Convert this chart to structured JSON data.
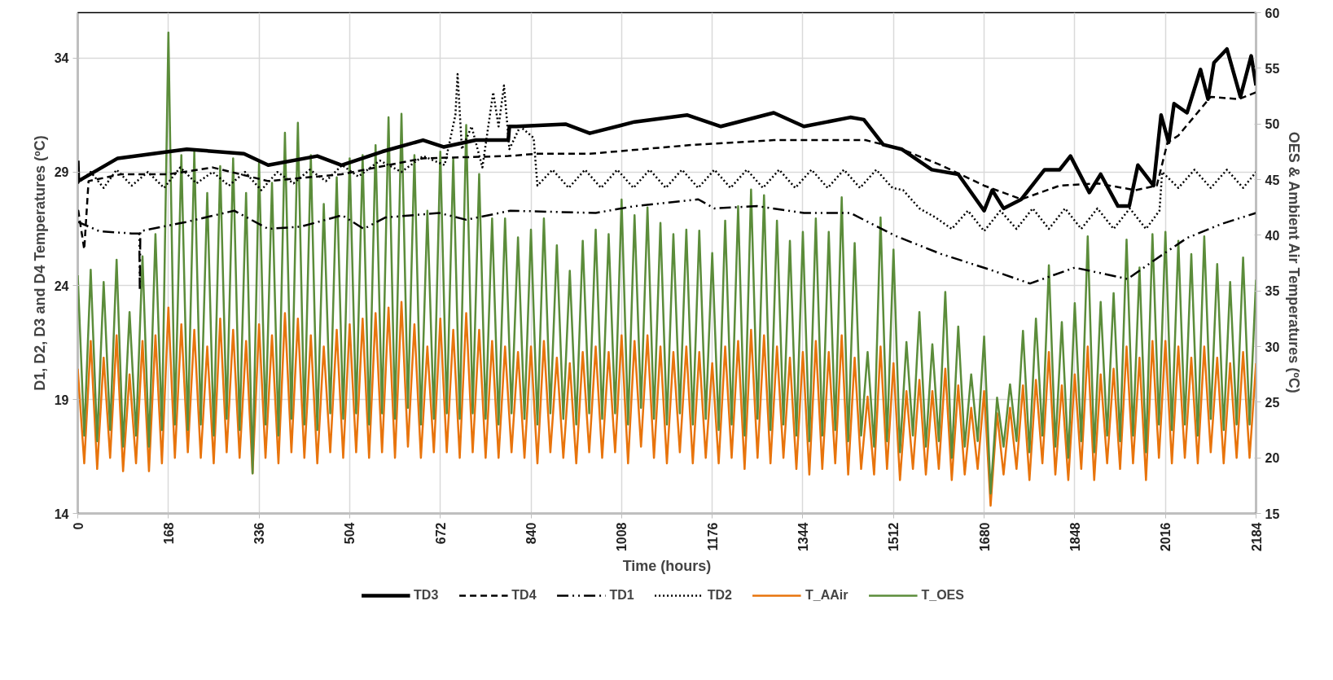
{
  "chart_data": {
    "type": "line",
    "xlabel": "Time (hours)",
    "ylabel": "D1, D2, D3 and D4 Temperatures (ºC)",
    "y2label": "OES & Ambient Air Temperatures (ºC)",
    "xlim": [
      0,
      2184
    ],
    "xticks": [
      0,
      168,
      336,
      504,
      672,
      840,
      1008,
      1176,
      1344,
      1512,
      1680,
      1848,
      2016,
      2184
    ],
    "ylim": [
      14,
      36
    ],
    "yticks": [
      14,
      19,
      24,
      29,
      34
    ],
    "y2lim": [
      15,
      60
    ],
    "y2ticks": [
      15,
      20,
      25,
      30,
      35,
      40,
      45,
      50,
      55,
      60
    ],
    "grid": true,
    "legend": "bottom",
    "series": [
      {
        "name": "TD3",
        "color": "#000000",
        "line_style": "solid",
        "x": [
          0,
          1,
          74,
          202,
          308,
          353,
          444,
          489,
          565,
          640,
          678,
          738,
          798,
          800,
          813,
          904,
          949,
          1032,
          1130,
          1192,
          1290,
          1346,
          1432,
          1457,
          1493,
          1527,
          1583,
          1632,
          1680,
          1695,
          1716,
          1749,
          1792,
          1820,
          1840,
          1875,
          1896,
          1928,
          1949,
          1965,
          1994,
          2008,
          2022,
          2032,
          2056,
          2081,
          2095,
          2106,
          2130,
          2155,
          2175,
          2184
        ],
        "values": [
          29.5,
          28.6,
          29.6,
          30.0,
          29.8,
          29.3,
          29.7,
          29.3,
          29.9,
          30.4,
          30.1,
          30.4,
          30.4,
          31.0,
          31.0,
          31.1,
          30.7,
          31.2,
          31.5,
          31.0,
          31.6,
          31.0,
          31.4,
          31.3,
          30.2,
          30.0,
          29.1,
          28.9,
          27.3,
          28.2,
          27.4,
          27.8,
          29.1,
          29.1,
          29.7,
          28.1,
          28.9,
          27.5,
          27.5,
          29.3,
          28.4,
          31.5,
          30.3,
          32.0,
          31.6,
          33.5,
          32.2,
          33.8,
          34.4,
          32.3,
          34.1,
          32.8
        ]
      },
      {
        "name": "TD4",
        "color": "#000000",
        "line_style": "dashed",
        "x": [
          0,
          1,
          12,
          20,
          80,
          168,
          250,
          353,
          489,
          640,
          798,
          850,
          949,
          1144,
          1290,
          1460,
          1527,
          1600,
          1680,
          1749,
          1820,
          1890,
          1960,
          2000,
          2020,
          2040,
          2100,
          2152,
          2184
        ],
        "values": [
          27.3,
          27.3,
          25.6,
          28.6,
          28.9,
          28.9,
          29.2,
          28.6,
          28.9,
          29.6,
          29.7,
          29.8,
          29.8,
          30.2,
          30.4,
          30.4,
          30.0,
          29.3,
          28.4,
          27.8,
          28.4,
          28.5,
          28.2,
          28.4,
          30.3,
          30.6,
          32.3,
          32.2,
          32.5
        ]
      },
      {
        "name": "TD1",
        "color": "#000000",
        "line_style": "dashdot",
        "x": [
          0,
          1,
          40,
          100,
          114,
          115,
          116,
          200,
          290,
          353,
          414,
          490,
          530,
          570,
          670,
          720,
          802,
          960,
          1032,
          1150,
          1180,
          1260,
          1346,
          1432,
          1515,
          1600,
          1692,
          1765,
          1848,
          1946,
          2000,
          2056,
          2118,
          2184
        ],
        "values": [
          26.8,
          26.8,
          26.4,
          26.3,
          26.3,
          23.8,
          26.4,
          26.8,
          27.3,
          26.5,
          26.6,
          27.1,
          26.5,
          27.0,
          27.2,
          26.9,
          27.3,
          27.2,
          27.5,
          27.8,
          27.4,
          27.5,
          27.2,
          27.2,
          26.2,
          25.4,
          24.7,
          24.1,
          24.8,
          24.3,
          25.2,
          26.1,
          26.7,
          27.2
        ]
      },
      {
        "name": "TD2",
        "color": "#000000",
        "line_style": "dotted",
        "x": [
          0,
          24,
          48,
          72,
          100,
          130,
          160,
          190,
          220,
          250,
          280,
          310,
          340,
          370,
          400,
          430,
          460,
          490,
          520,
          560,
          600,
          640,
          680,
          700,
          704,
          712,
          730,
          750,
          770,
          780,
          790,
          800,
          820,
          845,
          852,
          880,
          910,
          940,
          970,
          1000,
          1030,
          1060,
          1090,
          1120,
          1150,
          1180,
          1210,
          1240,
          1270,
          1300,
          1330,
          1360,
          1390,
          1420,
          1450,
          1480,
          1510,
          1530,
          1560,
          1590,
          1620,
          1650,
          1680,
          1710,
          1740,
          1770,
          1800,
          1830,
          1860,
          1890,
          1920,
          1950,
          1980,
          2005,
          2010,
          2040,
          2070,
          2100,
          2130,
          2160,
          2184
        ],
        "values": [
          28.5,
          29.0,
          28.3,
          29.1,
          28.4,
          29.0,
          28.3,
          29.2,
          28.5,
          29.0,
          28.4,
          29.0,
          28.2,
          29.0,
          28.5,
          29.1,
          28.6,
          29.3,
          28.8,
          29.5,
          29.0,
          29.7,
          29.3,
          31.5,
          33.3,
          30.0,
          31.0,
          29.2,
          32.5,
          31.0,
          32.8,
          30.0,
          31.0,
          30.5,
          28.4,
          29.1,
          28.3,
          29.1,
          28.3,
          29.1,
          28.3,
          29.1,
          28.3,
          29.1,
          28.3,
          29.1,
          28.3,
          29.1,
          28.3,
          29.1,
          28.3,
          29.1,
          28.3,
          29.1,
          28.3,
          29.1,
          28.3,
          28.2,
          27.4,
          27.0,
          26.5,
          27.3,
          26.4,
          27.3,
          26.5,
          27.4,
          26.5,
          27.4,
          26.5,
          27.4,
          26.5,
          27.4,
          26.5,
          27.3,
          29.0,
          28.3,
          29.1,
          28.3,
          29.1,
          28.3,
          29.0
        ]
      },
      {
        "name": "T_AAir",
        "color": "#e8740c",
        "line_style": "solid",
        "axis": "y2",
        "x": [
          0,
          12,
          24,
          36,
          48,
          60,
          72,
          84,
          96,
          108,
          120,
          132,
          144,
          156,
          168,
          180,
          192,
          204,
          216,
          228,
          240,
          252,
          264,
          276,
          288,
          300,
          312,
          324,
          336,
          348,
          360,
          372,
          384,
          396,
          408,
          420,
          432,
          444,
          456,
          468,
          480,
          492,
          504,
          516,
          528,
          540,
          552,
          564,
          576,
          588,
          600,
          612,
          624,
          636,
          648,
          660,
          672,
          684,
          696,
          708,
          720,
          732,
          744,
          756,
          768,
          780,
          792,
          804,
          816,
          828,
          840,
          852,
          864,
          876,
          888,
          900,
          912,
          924,
          936,
          948,
          960,
          972,
          984,
          996,
          1008,
          1020,
          1032,
          1044,
          1056,
          1068,
          1080,
          1092,
          1104,
          1116,
          1128,
          1140,
          1152,
          1164,
          1176,
          1188,
          1200,
          1212,
          1224,
          1236,
          1248,
          1260,
          1272,
          1284,
          1296,
          1308,
          1320,
          1332,
          1344,
          1356,
          1368,
          1380,
          1392,
          1404,
          1416,
          1428,
          1440,
          1452,
          1464,
          1476,
          1488,
          1500,
          1512,
          1524,
          1536,
          1548,
          1560,
          1572,
          1584,
          1596,
          1608,
          1620,
          1632,
          1644,
          1656,
          1668,
          1680,
          1692,
          1704,
          1716,
          1728,
          1740,
          1752,
          1764,
          1776,
          1788,
          1800,
          1812,
          1824,
          1836,
          1848,
          1860,
          1872,
          1884,
          1896,
          1908,
          1920,
          1932,
          1944,
          1956,
          1968,
          1980,
          1992,
          2004,
          2016,
          2028,
          2040,
          2052,
          2064,
          2076,
          2088,
          2100,
          2112,
          2124,
          2136,
          2148,
          2160,
          2172,
          2184
        ],
        "values": [
          28.0,
          19.5,
          30.5,
          19.0,
          29.0,
          20.0,
          31.0,
          18.8,
          27.5,
          19.5,
          30.5,
          18.8,
          31.0,
          19.5,
          33.5,
          20.0,
          32.0,
          20.5,
          31.5,
          20.0,
          30.0,
          19.5,
          32.5,
          20.5,
          31.5,
          20.0,
          30.5,
          18.6,
          32.0,
          20.0,
          31.0,
          19.5,
          33.0,
          20.5,
          32.5,
          20.0,
          31.0,
          19.5,
          30.0,
          20.5,
          31.5,
          20.0,
          32.0,
          20.5,
          32.5,
          20.0,
          33.0,
          20.5,
          33.5,
          20.0,
          34.0,
          21.0,
          32.0,
          20.0,
          30.0,
          20.5,
          32.5,
          20.5,
          31.5,
          20.0,
          33.0,
          20.5,
          31.5,
          20.0,
          30.5,
          20.0,
          30.0,
          20.5,
          29.5,
          20.0,
          30.0,
          19.5,
          30.5,
          20.5,
          29.0,
          20.0,
          28.5,
          19.5,
          29.5,
          20.5,
          30.0,
          20.0,
          29.5,
          20.5,
          31.0,
          19.5,
          30.5,
          21.0,
          31.0,
          20.0,
          30.0,
          19.5,
          29.5,
          20.5,
          30.0,
          19.5,
          29.5,
          20.0,
          28.5,
          19.5,
          30.0,
          20.0,
          30.5,
          19.0,
          31.5,
          20.0,
          31.0,
          19.5,
          30.0,
          20.0,
          29.0,
          19.0,
          29.5,
          18.5,
          30.5,
          19.0,
          29.5,
          19.5,
          31.0,
          18.5,
          29.0,
          19.0,
          25.5,
          18.5,
          30.0,
          19.0,
          28.5,
          18.0,
          26.0,
          19.0,
          27.0,
          18.5,
          26.0,
          19.0,
          28.0,
          18.0,
          26.5,
          18.5,
          24.5,
          19.0,
          26.0,
          15.7,
          24.0,
          18.5,
          24.5,
          19.0,
          26.5,
          18.0,
          27.0,
          19.5,
          29.5,
          18.5,
          26.5,
          18.0,
          27.5,
          19.0,
          30.0,
          18.0,
          27.5,
          19.5,
          28.0,
          19.0,
          30.0,
          19.5,
          29.0,
          18.0,
          30.5,
          20.0,
          30.5,
          19.5,
          30.0,
          20.0,
          29.0,
          19.5,
          30.0,
          20.5,
          29.0,
          19.5,
          28.5,
          20.0,
          29.5,
          20.0,
          28.5
        ]
      },
      {
        "name": "T_OES",
        "color": "#5b8c3a",
        "line_style": "solid",
        "axis": "y2",
        "x": [
          0,
          12,
          24,
          36,
          48,
          60,
          72,
          84,
          96,
          108,
          120,
          132,
          144,
          156,
          168,
          180,
          192,
          204,
          216,
          228,
          240,
          252,
          264,
          276,
          288,
          300,
          312,
          324,
          336,
          348,
          360,
          372,
          384,
          396,
          408,
          420,
          432,
          444,
          456,
          468,
          480,
          492,
          504,
          516,
          528,
          540,
          552,
          564,
          576,
          588,
          600,
          612,
          624,
          636,
          648,
          660,
          672,
          684,
          696,
          708,
          720,
          732,
          744,
          756,
          768,
          780,
          792,
          804,
          816,
          828,
          840,
          852,
          864,
          876,
          888,
          900,
          912,
          924,
          936,
          948,
          960,
          972,
          984,
          996,
          1008,
          1020,
          1032,
          1044,
          1056,
          1068,
          1080,
          1092,
          1104,
          1116,
          1128,
          1140,
          1152,
          1164,
          1176,
          1188,
          1200,
          1212,
          1224,
          1236,
          1248,
          1260,
          1272,
          1284,
          1296,
          1308,
          1320,
          1332,
          1344,
          1356,
          1368,
          1380,
          1392,
          1404,
          1416,
          1428,
          1440,
          1452,
          1464,
          1476,
          1488,
          1500,
          1512,
          1524,
          1536,
          1548,
          1560,
          1572,
          1584,
          1596,
          1608,
          1620,
          1632,
          1644,
          1656,
          1668,
          1680,
          1692,
          1704,
          1716,
          1728,
          1740,
          1752,
          1764,
          1776,
          1788,
          1800,
          1812,
          1824,
          1836,
          1848,
          1860,
          1872,
          1884,
          1896,
          1908,
          1920,
          1932,
          1944,
          1956,
          1968,
          1980,
          1992,
          2004,
          2016,
          2028,
          2040,
          2052,
          2064,
          2076,
          2088,
          2100,
          2112,
          2124,
          2136,
          2148,
          2160,
          2172,
          2184
        ],
        "values": [
          36.4,
          22.0,
          36.9,
          21.5,
          35.8,
          22.5,
          37.8,
          21.0,
          33.1,
          22.0,
          38.1,
          21.0,
          40.1,
          22.5,
          58.2,
          23.0,
          47.2,
          22.5,
          47.5,
          23.0,
          43.8,
          22.0,
          46.2,
          23.5,
          46.9,
          22.5,
          43.8,
          18.6,
          46.5,
          23.0,
          44.7,
          22.0,
          49.2,
          23.5,
          50.1,
          23.0,
          47.2,
          22.5,
          42.8,
          24.0,
          45.2,
          23.5,
          46.9,
          24.0,
          47.2,
          23.0,
          48.1,
          24.0,
          50.6,
          23.5,
          50.9,
          24.5,
          47.2,
          23.0,
          42.2,
          23.5,
          47.5,
          24.0,
          46.9,
          23.5,
          49.9,
          24.0,
          45.5,
          23.5,
          41.5,
          23.0,
          41.5,
          24.0,
          39.8,
          23.5,
          40.5,
          23.0,
          41.5,
          24.0,
          39.1,
          23.5,
          36.8,
          23.0,
          39.5,
          24.0,
          40.5,
          23.5,
          40.1,
          24.0,
          43.2,
          23.0,
          41.8,
          24.5,
          42.5,
          23.5,
          41.1,
          23.0,
          40.1,
          24.0,
          40.5,
          23.0,
          40.4,
          23.5,
          38.4,
          22.5,
          41.3,
          23.0,
          42.6,
          22.0,
          44.1,
          23.5,
          43.6,
          22.5,
          41.3,
          23.0,
          39.5,
          22.0,
          40.3,
          21.5,
          41.5,
          22.0,
          40.3,
          22.5,
          43.4,
          21.5,
          39.3,
          22.0,
          29.5,
          21.0,
          41.6,
          21.5,
          38.7,
          20.5,
          30.4,
          22.0,
          33.1,
          21.0,
          30.2,
          21.5,
          34.9,
          20.0,
          31.8,
          21.0,
          27.5,
          21.5,
          30.9,
          16.8,
          25.4,
          21.0,
          26.6,
          21.5,
          31.4,
          20.5,
          32.5,
          22.0,
          37.3,
          21.0,
          32.2,
          20.0,
          33.9,
          21.5,
          39.9,
          20.5,
          34.0,
          22.0,
          34.8,
          21.5,
          39.6,
          22.0,
          37.1,
          20.5,
          40.1,
          23.0,
          40.3,
          22.5,
          39.5,
          23.0,
          38.3,
          22.0,
          39.9,
          23.5,
          37.4,
          22.5,
          35.8,
          23.0,
          38.0,
          23.0,
          36.0
        ]
      }
    ]
  }
}
